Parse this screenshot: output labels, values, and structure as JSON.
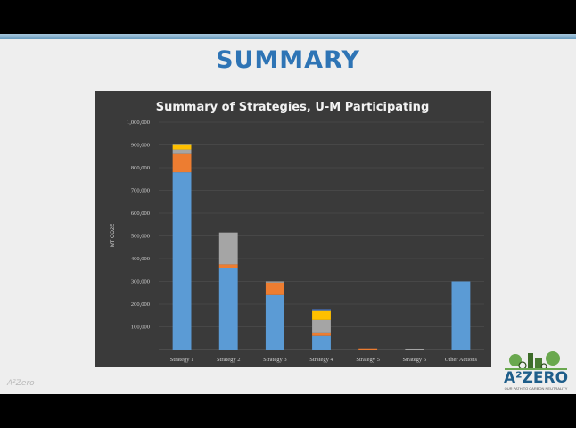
{
  "slide": {
    "title": "SUMMARY",
    "footer_left": "A²Zero"
  },
  "logo": {
    "word": "A²ZERO",
    "tagline": "OUR PATH TO CARBON NEUTRALITY"
  },
  "colors": {
    "series": [
      "#5b9bd5",
      "#ed7d31",
      "#a5a5a5",
      "#ffc000",
      "#4472c4"
    ],
    "chart_bg": "#3a3a3a",
    "title_color": "#2e74b5"
  },
  "chart_data": {
    "type": "bar",
    "stacked": true,
    "title": "Summary of Strategies, U-M Participating",
    "xlabel": "",
    "ylabel": "MT CO2E",
    "ylim": [
      0,
      1000000
    ],
    "yticks": [
      "",
      "100,000",
      "200,000",
      "300,000",
      "400,000",
      "500,000",
      "600,000",
      "700,000",
      "800,000",
      "900,000",
      "1,000,000"
    ],
    "grid": true,
    "categories": [
      "Strategy 1",
      "Strategy 2",
      "Strategy 3",
      "Strategy 4",
      "Strategy 5",
      "Strategy 6",
      "Other Actions"
    ],
    "series": [
      {
        "values": [
          780000,
          360000,
          240000,
          60000,
          0,
          0,
          300000
        ]
      },
      {
        "values": [
          80000,
          15000,
          55000,
          15000,
          5000,
          0,
          0
        ]
      },
      {
        "values": [
          20000,
          140000,
          5000,
          55000,
          0,
          4000,
          0
        ]
      },
      {
        "values": [
          20000,
          0,
          0,
          40000,
          0,
          0,
          0
        ]
      },
      {
        "values": [
          5000,
          0,
          0,
          5000,
          0,
          0,
          0
        ]
      }
    ]
  }
}
